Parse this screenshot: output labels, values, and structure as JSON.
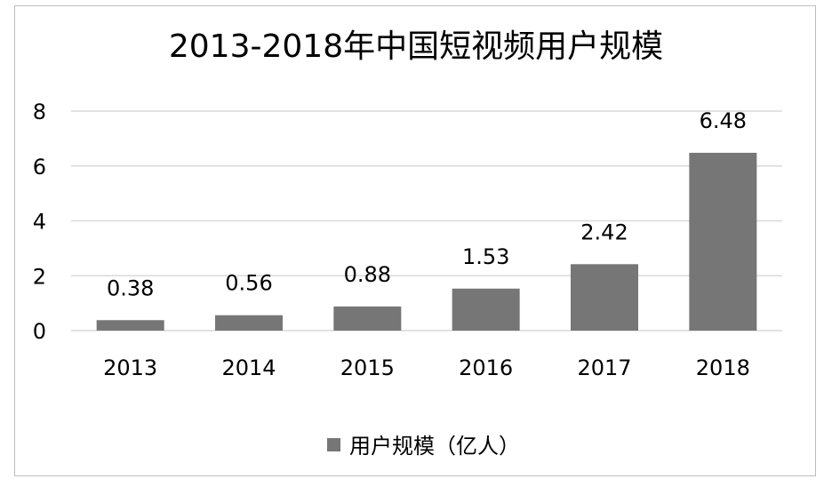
{
  "chart_data": {
    "type": "bar",
    "title": "2013-2018年中国短视频用户规模",
    "categories": [
      "2013",
      "2014",
      "2015",
      "2016",
      "2017",
      "2018"
    ],
    "series": [
      {
        "name": "用户规模（亿人）",
        "values": [
          0.38,
          0.56,
          0.88,
          1.53,
          2.42,
          6.48
        ]
      }
    ],
    "value_labels": [
      "0.38",
      "0.56",
      "0.88",
      "1.53",
      "2.42",
      "6.48"
    ],
    "ylim": [
      0,
      8
    ],
    "yticks": [
      0,
      2,
      4,
      6,
      8
    ],
    "ytick_labels": [
      "0",
      "2",
      "4",
      "6",
      "8"
    ],
    "grid": true,
    "legend_position": "bottom",
    "colors": {
      "bar": "#767676",
      "grid": "#d9d9d9",
      "text": "#000000"
    }
  }
}
